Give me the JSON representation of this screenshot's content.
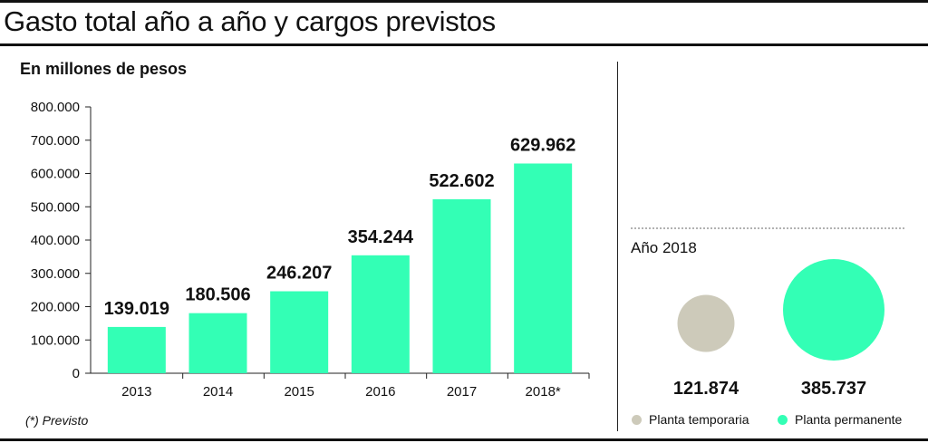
{
  "title": "Gasto total año a año y cargos previstos",
  "chart_data": [
    {
      "type": "bar",
      "subtitle": "En millones de pesos",
      "categories": [
        "2013",
        "2014",
        "2015",
        "2016",
        "2017",
        "2018*"
      ],
      "values": [
        139019,
        180506,
        246207,
        354244,
        522602,
        629962
      ],
      "value_labels": [
        "139.019",
        "180.506",
        "246.207",
        "354.244",
        "522.602",
        "629.962"
      ],
      "ylim": [
        0,
        800000
      ],
      "yticks": [
        0,
        100000,
        200000,
        300000,
        400000,
        500000,
        600000,
        700000,
        800000
      ],
      "ytick_labels": [
        "0",
        "100.000",
        "200.000",
        "300.000",
        "400.000",
        "500.000",
        "600.000",
        "700.000",
        "800.000"
      ],
      "bar_color": "#33FFB5",
      "footnote": "(*) Previsto"
    },
    {
      "type": "proportional-circles",
      "title": "Año 2018",
      "items": [
        {
          "name": "Planta temporaria",
          "value": 121874,
          "label": "121.874",
          "color": "#CDCABA"
        },
        {
          "name": "Planta permanente",
          "value": 385737,
          "label": "385.737",
          "color": "#33FFB5"
        }
      ]
    }
  ]
}
